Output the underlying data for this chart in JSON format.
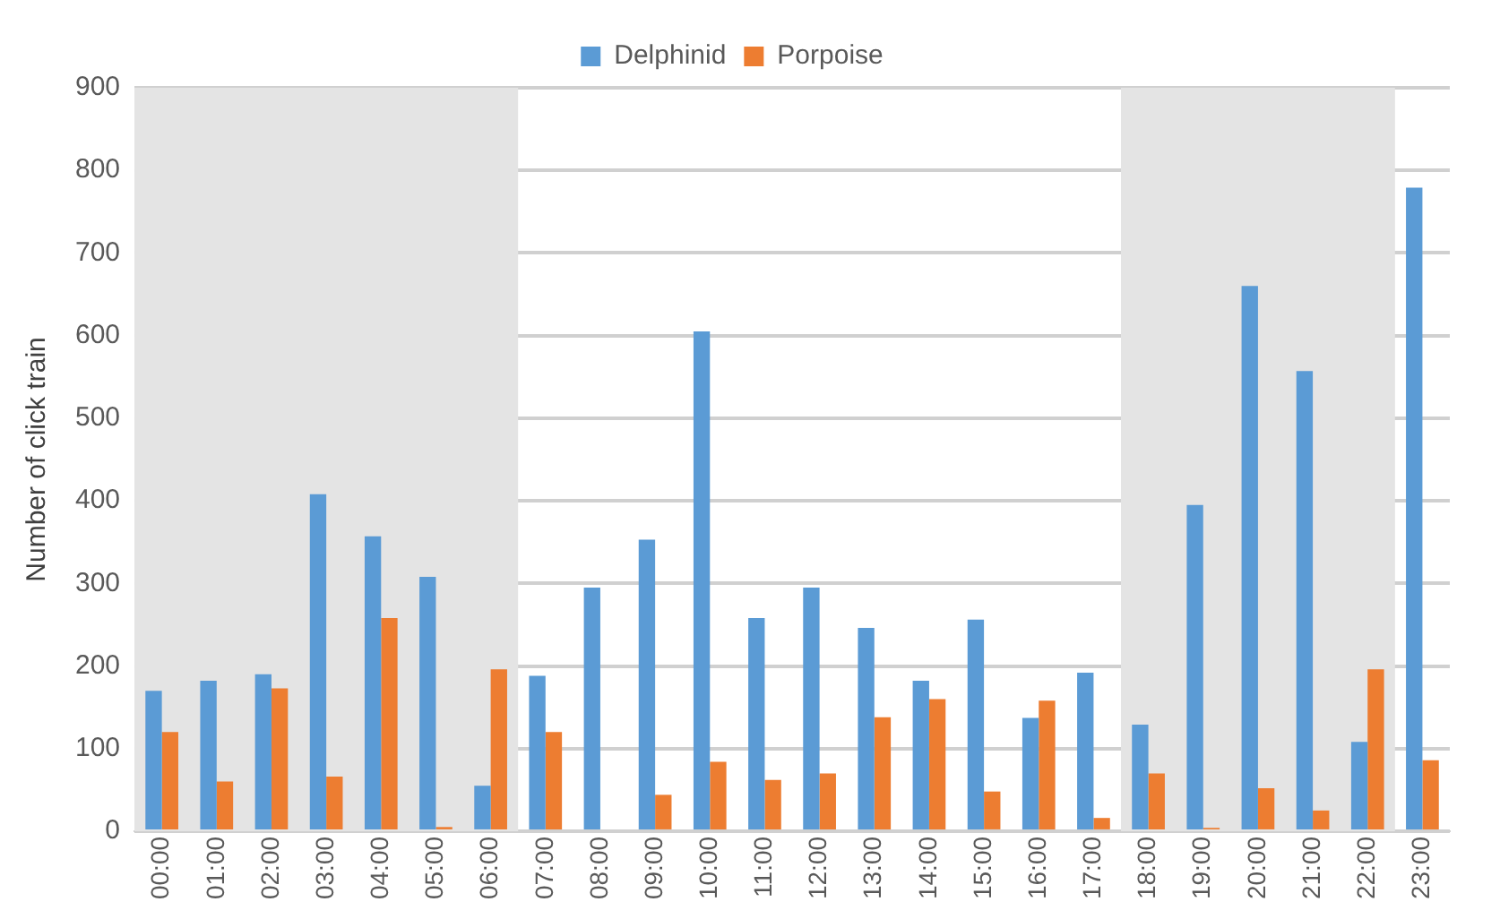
{
  "chart_data": {
    "type": "bar",
    "ylabel": "Number of click train",
    "categories": [
      "00:00",
      "01:00",
      "02:00",
      "03:00",
      "04:00",
      "05:00",
      "06:00",
      "07:00",
      "08:00",
      "09:00",
      "10:00",
      "11:00",
      "12:00",
      "13:00",
      "14:00",
      "15:00",
      "16:00",
      "17:00",
      "18:00",
      "19:00",
      "20:00",
      "21:00",
      "22:00",
      "23:00"
    ],
    "series": [
      {
        "name": "Delphinid",
        "color": "#5b9bd5",
        "values": [
          170,
          182,
          190,
          408,
          357,
          308,
          55,
          188,
          295,
          353,
          605,
          258,
          295,
          246,
          182,
          256,
          137,
          192,
          129,
          395,
          660,
          557,
          108,
          779
        ]
      },
      {
        "name": "Porpoise",
        "color": "#ed7d31",
        "values": [
          120,
          60,
          173,
          66,
          258,
          5,
          196,
          120,
          0,
          44,
          84,
          62,
          70,
          138,
          160,
          48,
          158,
          16,
          70,
          4,
          52,
          25,
          196,
          86
        ]
      }
    ],
    "ylim": [
      0,
      900
    ],
    "yticks": [
      0,
      100,
      200,
      300,
      400,
      500,
      600,
      700,
      800,
      900
    ],
    "bands": [
      {
        "axis": "x",
        "from": "00:00",
        "to": "06:00",
        "color": "#e4e4e4"
      },
      {
        "axis": "x",
        "from": "18:00",
        "to": "22:00",
        "color": "#e4e4e4"
      }
    ],
    "grid": "y",
    "legend": "top"
  }
}
